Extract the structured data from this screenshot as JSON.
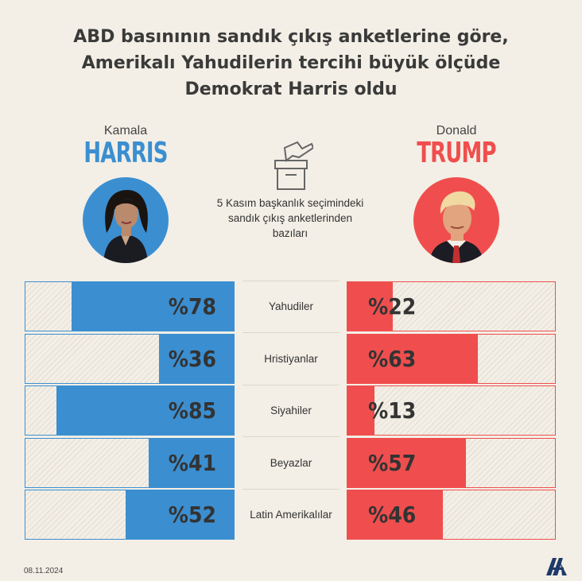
{
  "title_lines": [
    "ABD basınının sandık çıkış anketlerine göre,",
    "Amerikalı Yahudilerin tercihi büyük ölçüde",
    "Demokrat Harris oldu"
  ],
  "harris": {
    "first": "Kamala",
    "last": "HARRIS",
    "color": "#3b8fd1"
  },
  "trump": {
    "first": "Donald",
    "last": "TRUMP",
    "color": "#f04e4e"
  },
  "note_lines": [
    "5 Kasım başkanlık seçimindeki",
    "sandık çıkış anketlerinden",
    "bazıları"
  ],
  "date": "08.11.2024",
  "icons": {
    "ballot": "ballot-box-icon",
    "logo": "aa-logo"
  },
  "chart_data": {
    "type": "bar",
    "categories": [
      "Yahudiler",
      "Hristiyanlar",
      "Siyahiler",
      "Beyazlar",
      "Latin Amerikalılar"
    ],
    "series": [
      {
        "name": "HARRIS",
        "values": [
          78,
          36,
          85,
          41,
          52
        ],
        "labels": [
          "%78",
          "%36",
          "%85",
          "%41",
          "%52"
        ]
      },
      {
        "name": "TRUMP",
        "values": [
          22,
          63,
          13,
          57,
          46
        ],
        "labels": [
          "%22",
          "%63",
          "%13",
          "%57",
          "%46"
        ]
      }
    ],
    "xlim": [
      0,
      100
    ]
  }
}
